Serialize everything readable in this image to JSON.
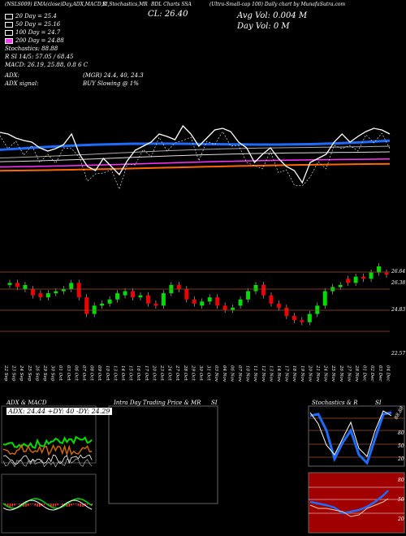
{
  "header": {
    "line1_a": "(NSLS009) EMA(close)Day,ADX,MACD,R",
    "line1_b": "SI,Stochastics,MR",
    "line1_c": "BDL Charts SSA",
    "line1_d": "(Ultra-Small-cap 100) Daily chart by MunafaSutra.com"
  },
  "indicators": {
    "ema20": {
      "label": "20  Day = 25.4",
      "color": "#ffffff"
    },
    "ema50": {
      "label": "50  Day = 25.16",
      "color": "#ffffff"
    },
    "ema100": {
      "label": "100  Day = 24.7",
      "color": "#ffffff"
    },
    "ema200": {
      "label": "200  Day = 24.88",
      "color": "#ff33ff"
    },
    "stochastics": "Stochastics: 88.88",
    "rsi": "R                    SI 14/5: 57.05 / 68.45",
    "macd": "MACD: 26.19, 25.88, 0.8              6  C",
    "close": "CL: 26.40",
    "avg_vol": "Avg Vol: 0.004  M",
    "day_vol": "Day Vol: 0  M",
    "adx": "ADX:",
    "adx_val": "(MGR) 24.4,  40,  24.3",
    "adx_signal": "ADX  signal:",
    "signal": "BUY Slowing @ 1%"
  },
  "price_labels": [
    "26.64",
    "26.38",
    "24.83",
    "22.57"
  ],
  "dates": [
    "22 Sep",
    "23 Sep",
    "24 Sep",
    "25 Sep",
    "26 Sep",
    "29 Sep",
    "30 Sep",
    "01 Oct",
    "03 Oct",
    "06 Oct",
    "07 Oct",
    "08 Oct",
    "09 Oct",
    "10 Oct",
    "13 Oct",
    "14 Oct",
    "15 Oct",
    "16 Oct",
    "17 Oct",
    "20 Oct",
    "23 Oct",
    "24 Oct",
    "27 Oct",
    "28 Oct",
    "29 Oct",
    "30 Oct",
    "31 Oct",
    "03 Nov",
    "04 Nov",
    "06 Nov",
    "07 Nov",
    "10 Nov",
    "11 Nov",
    "12 Nov",
    "13 Nov",
    "14 Nov",
    "17 Nov",
    "18 Nov",
    "19 Nov",
    "20 Nov",
    "21 Nov",
    "24 Nov",
    "25 Nov",
    "26 Nov",
    "27 Nov",
    "28 Nov",
    "01 Dec",
    "02 Dec",
    "03 Dec",
    "04 Dec"
  ],
  "panels": {
    "adx_title": "ADX  & MACD",
    "adx_values": "ADX: 24.44  +DY: 40  -DY: 24.29",
    "intra_title": "Intra  Day Trading Price  & MR",
    "intra_si": "SI",
    "stoch_title": "Stochastics & R",
    "stoch_si": "SI",
    "stoch_levels": [
      "80",
      "50",
      "20"
    ],
    "rsi_levels": [
      "80",
      "50",
      "20"
    ],
    "stoch_side": "88.88"
  },
  "chart_data": {
    "type": "candlestick",
    "close": [
      26.0,
      25.8,
      25.9,
      25.4,
      25.3,
      25.5,
      25.6,
      25.7,
      26.0,
      25.3,
      24.5,
      24.9,
      25.0,
      25.2,
      25.5,
      25.6,
      25.3,
      25.4,
      25.0,
      24.9,
      25.5,
      25.9,
      25.7,
      25.2,
      25.0,
      25.1,
      25.3,
      24.9,
      24.7,
      24.8,
      25.2,
      25.6,
      25.9,
      25.4,
      25.0,
      24.8,
      24.4,
      24.2,
      24.1,
      24.5,
      24.9,
      25.6,
      25.8,
      25.9,
      26.0,
      26.3,
      26.2,
      26.5,
      26.8,
      26.4
    ],
    "open": [
      25.9,
      26.0,
      25.7,
      25.7,
      25.5,
      25.3,
      25.5,
      25.6,
      25.7,
      26.0,
      25.3,
      24.5,
      24.9,
      25.0,
      25.2,
      25.4,
      25.6,
      25.3,
      25.4,
      25.0,
      24.9,
      25.5,
      25.9,
      25.7,
      25.2,
      24.9,
      25.1,
      25.3,
      24.9,
      24.7,
      24.9,
      25.2,
      25.6,
      25.9,
      25.4,
      25.0,
      24.8,
      24.4,
      24.2,
      24.1,
      24.5,
      24.9,
      25.6,
      25.8,
      26.2,
      26.0,
      26.3,
      26.2,
      26.5,
      26.5
    ],
    "ylim": [
      22.4,
      26.8
    ],
    "ema_lines": [
      "20 Day",
      "50 Day",
      "100 Day",
      "200 Day"
    ]
  }
}
